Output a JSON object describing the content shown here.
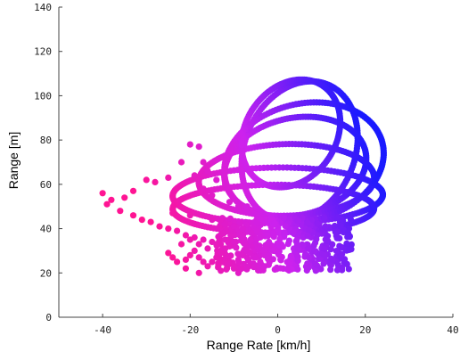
{
  "chart_data": {
    "type": "scatter",
    "xlabel": "Range Rate [km/h]",
    "ylabel": "Range [m]",
    "xlim": [
      -50,
      40
    ],
    "ylim": [
      0,
      140
    ],
    "xticks": [
      -40,
      -20,
      0,
      20,
      40
    ],
    "yticks": [
      0,
      20,
      40,
      60,
      80,
      100,
      120,
      140
    ],
    "grid": false,
    "colors": {
      "near_slow": "#ff1493",
      "mid": "#cc22ee",
      "far_fast": "#1a1aff"
    },
    "series": [
      {
        "values": [
          [
            -40,
            56
          ],
          [
            -38,
            53
          ],
          [
            -39,
            51
          ],
          [
            -36,
            48
          ],
          [
            -33,
            46
          ],
          [
            -31,
            44
          ],
          [
            -29,
            43
          ],
          [
            -27,
            41
          ],
          [
            -25,
            40
          ],
          [
            -23,
            39
          ],
          [
            -21,
            37
          ],
          [
            -19,
            36
          ],
          [
            -17,
            35
          ],
          [
            -15,
            34
          ],
          [
            -13,
            33
          ],
          [
            -11,
            32
          ],
          [
            -35,
            54
          ],
          [
            -33,
            57
          ],
          [
            -30,
            62
          ],
          [
            -28,
            61
          ],
          [
            -25,
            63
          ],
          [
            -22,
            70
          ],
          [
            -20,
            78
          ],
          [
            -18,
            77
          ],
          [
            -16,
            66
          ],
          [
            -17,
            70
          ],
          [
            -24,
            47
          ],
          [
            -20,
            46
          ],
          [
            -15,
            44
          ],
          [
            -12,
            42
          ],
          [
            -10,
            41
          ],
          [
            -8,
            40
          ],
          [
            -15,
            55
          ],
          [
            -14,
            62
          ],
          [
            -17,
            58
          ],
          [
            -19,
            64
          ],
          [
            -12,
            60
          ],
          [
            -11,
            52
          ],
          [
            -9,
            50
          ],
          [
            -7,
            50
          ]
        ]
      },
      {
        "values": [
          [
            -25,
            29
          ],
          [
            -24,
            27
          ],
          [
            -23,
            25
          ],
          [
            -21,
            26
          ],
          [
            -20,
            28
          ],
          [
            -19,
            30
          ],
          [
            -18,
            27
          ],
          [
            -17,
            25
          ],
          [
            -16,
            23
          ],
          [
            -15,
            25
          ],
          [
            -14,
            27
          ],
          [
            -13,
            29
          ],
          [
            -12,
            31
          ],
          [
            -11,
            24
          ],
          [
            -10,
            22
          ],
          [
            -9,
            26
          ],
          [
            -8,
            28
          ],
          [
            -7,
            30
          ],
          [
            -6,
            32
          ],
          [
            -5,
            27
          ],
          [
            -4,
            25
          ],
          [
            -3,
            23
          ],
          [
            -2,
            28
          ],
          [
            -1,
            30
          ],
          [
            -22,
            33
          ],
          [
            -20,
            35
          ],
          [
            -18,
            33
          ],
          [
            -16,
            31
          ],
          [
            -14,
            33
          ],
          [
            -12,
            35
          ],
          [
            -10,
            34
          ],
          [
            -8,
            36
          ],
          [
            -6,
            38
          ],
          [
            -4,
            36
          ],
          [
            -2,
            34
          ],
          [
            -1,
            38
          ],
          [
            -21,
            22
          ],
          [
            -18,
            20
          ],
          [
            -13,
            21
          ],
          [
            -9,
            20
          ]
        ]
      }
    ]
  }
}
